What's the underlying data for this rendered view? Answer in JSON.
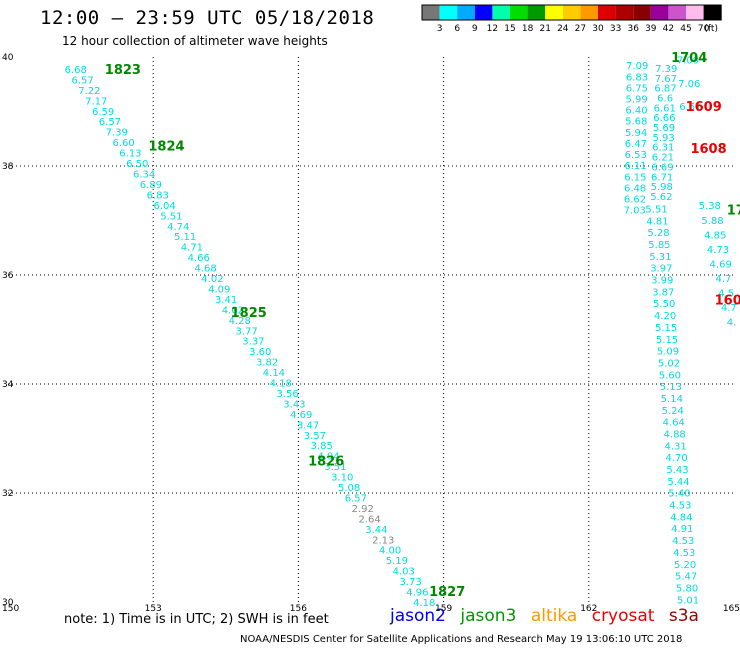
{
  "title": "12:00 – 23:59 UTC 05/18/2018",
  "subtitle": "12 hour collection of altimeter wave heights",
  "note": "note: 1) Time is in UTC; 2) SWH is in feet",
  "credit": "NOAA/NESDIS Center for Satellite Applications and Research    May 19 13:06:10 UTC 2018",
  "satellites": [
    "jason2",
    "jason3",
    "altika",
    "cryosat",
    "s3a"
  ],
  "colors": {
    "grid": "#000000",
    "track_cyan": "#00dddd",
    "grey": "#888888",
    "green": "#008800",
    "red": "#ee0000",
    "jason2": "#0000ee",
    "jason3": "#009900",
    "altika": "#ff9900",
    "cryosat": "#ee0000",
    "s3a": "#990000"
  },
  "chart_data": {
    "type": "scatter",
    "title": "12:00 – 23:59 UTC 05/18/2018",
    "subtitle": "12 hour collection of altimeter wave heights",
    "xlabel": "",
    "ylabel": "",
    "x_ticks": [
      "150",
      "153",
      "156",
      "159",
      "162",
      "165"
    ],
    "y_ticks": [
      "30",
      "32",
      "34",
      "36",
      "38",
      "40"
    ],
    "xlim": [
      150,
      165
    ],
    "ylim": [
      30,
      40
    ],
    "grid": true,
    "color_scale": {
      "unit": "(ft)",
      "labels": [
        "3",
        "6",
        "9",
        "12",
        "15",
        "18",
        "21",
        "24",
        "27",
        "30",
        "33",
        "36",
        "39",
        "42",
        "45",
        "70"
      ],
      "colors": [
        "#777777",
        "#00ffff",
        "#00aaff",
        "#0000ff",
        "#00ffaa",
        "#00dd00",
        "#009900",
        "#ffff00",
        "#ffcc00",
        "#ff9900",
        "#dd0000",
        "#aa0000",
        "#880000",
        "#990099",
        "#cc55cc",
        "#ffbbee",
        "#000000"
      ]
    },
    "time_labels": [
      {
        "text": "1823",
        "lon": 152.0,
        "lat": 39.78,
        "color": "green"
      },
      {
        "text": "1824",
        "lon": 152.9,
        "lat": 38.38,
        "color": "green"
      },
      {
        "text": "1825",
        "lon": 154.6,
        "lat": 35.32,
        "color": "green"
      },
      {
        "text": "1826",
        "lon": 156.2,
        "lat": 32.6,
        "color": "green"
      },
      {
        "text": "1827",
        "lon": 158.7,
        "lat": 30.2,
        "color": "green"
      },
      {
        "text": "1704",
        "lon": 163.7,
        "lat": 40.0,
        "color": "green"
      },
      {
        "text": "1609",
        "lon": 164.0,
        "lat": 39.1,
        "color": "red"
      },
      {
        "text": "1608",
        "lon": 164.1,
        "lat": 38.33,
        "color": "red"
      },
      {
        "text": "17",
        "lon": 164.85,
        "lat": 37.2,
        "color": "green"
      },
      {
        "text": "160",
        "lon": 164.6,
        "lat": 35.55,
        "color": "red"
      }
    ],
    "tracks": [
      {
        "lon_start": 151.4,
        "lat_start": 39.78,
        "lon_end": 158.6,
        "lat_end": 30.0,
        "values": [
          "6.68",
          "6.57",
          "7.22",
          "7.17",
          "6.59",
          "6.57",
          "7.39",
          "6.60",
          "6.13",
          "6.50",
          "6.34",
          "6.89",
          "6.83",
          "6.04",
          "5.51",
          "4.74",
          "5.11",
          "4.71",
          "4.66",
          "4.68",
          "4.02",
          "4.09",
          "3.41",
          "4.02",
          "4.28",
          "3.77",
          "3.37",
          "3.60",
          "3.82",
          "4.14",
          "4.18",
          "3.56",
          "3.43",
          "4.69",
          "3.47",
          "3.57",
          "3.85",
          "4.94",
          "3.51",
          "3.10",
          "5.08",
          "6.57",
          "2.92",
          "2.64",
          "3.44",
          "2.13",
          "4.00",
          "5.19",
          "4.03",
          "3.73",
          "4.96",
          "4.18"
        ],
        "colors": [
          "cyan",
          "cyan",
          "cyan",
          "cyan",
          "cyan",
          "cyan",
          "cyan",
          "cyan",
          "cyan",
          "cyan",
          "cyan",
          "cyan",
          "cyan",
          "cyan",
          "cyan",
          "cyan",
          "cyan",
          "cyan",
          "cyan",
          "cyan",
          "cyan",
          "cyan",
          "cyan",
          "cyan",
          "cyan",
          "cyan",
          "cyan",
          "cyan",
          "cyan",
          "cyan",
          "cyan",
          "cyan",
          "cyan",
          "cyan",
          "cyan",
          "cyan",
          "cyan",
          "cyan",
          "cyan",
          "cyan",
          "cyan",
          "cyan",
          "grey",
          "grey",
          "cyan",
          "grey",
          "cyan",
          "cyan",
          "cyan",
          "cyan",
          "cyan",
          "cyan"
        ]
      },
      {
        "lon_start": 163.0,
        "lat_start": 39.85,
        "lon_end": 162.95,
        "lat_end": 37.2,
        "values": [
          "7.09",
          "6.83",
          "6.75",
          "5.99",
          "6.40",
          "5.68",
          "5.94",
          "6.47",
          "6.53",
          "6.11",
          "6.15",
          "6.48",
          "6.62",
          "7.03"
        ],
        "colors": [
          "cyan",
          "cyan",
          "cyan",
          "cyan",
          "cyan",
          "cyan",
          "cyan",
          "cyan",
          "cyan",
          "cyan",
          "cyan",
          "cyan",
          "cyan",
          "cyan"
        ]
      },
      {
        "lon_start": 163.6,
        "lat_start": 39.8,
        "lon_end": 163.5,
        "lat_end": 37.45,
        "values": [
          "7.39",
          "7.67",
          "6.87",
          "6.6",
          "6.61",
          "6.66",
          "5.69",
          "5.93",
          "6.31",
          "6.21",
          "6.69",
          "6.71",
          "5.98",
          "5.62"
        ],
        "colors": [
          "cyan",
          "cyan",
          "cyan",
          "cyan",
          "cyan",
          "cyan",
          "cyan",
          "cyan",
          "cyan",
          "cyan",
          "cyan",
          "cyan",
          "cyan",
          "cyan"
        ]
      },
      {
        "lon_start": 163.4,
        "lat_start": 37.22,
        "lon_end": 164.05,
        "lat_end": 30.05,
        "values": [
          "5.51",
          "4.81",
          "5.28",
          "5.85",
          "5.31",
          "3.97",
          "3.99",
          "3.87",
          "5.50",
          "4.20",
          "5.15",
          "5.15",
          "5.09",
          "5.02",
          "5.60",
          "5.13",
          "5.14",
          "5.24",
          "4.64",
          "4.88",
          "4.31",
          "4.70",
          "5.43",
          "5.44",
          "5.40",
          "4.53",
          "4.84",
          "4.91",
          "4.53",
          "4.53",
          "5.20",
          "5.47",
          "5.80",
          "5.01"
        ],
        "colors": [
          "cyan",
          "cyan",
          "cyan",
          "cyan",
          "cyan",
          "cyan",
          "cyan",
          "cyan",
          "cyan",
          "cyan",
          "cyan",
          "cyan",
          "cyan",
          "cyan",
          "cyan",
          "cyan",
          "cyan",
          "cyan",
          "cyan",
          "cyan",
          "cyan",
          "cyan",
          "cyan",
          "cyan",
          "cyan",
          "cyan",
          "cyan",
          "cyan",
          "cyan",
          "cyan",
          "cyan",
          "cyan",
          "cyan",
          "cyan"
        ]
      },
      {
        "lon_start": 164.05,
        "lat_start": 39.95,
        "lon_end": 164.1,
        "lat_end": 39.1,
        "values": [
          "7.09",
          "7.06",
          "6.51"
        ],
        "colors": [
          "cyan",
          "cyan",
          "cyan"
        ]
      },
      {
        "lon_start": 164.5,
        "lat_start": 37.28,
        "lon_end": 164.95,
        "lat_end": 35.15,
        "values": [
          "5.38",
          "5.88",
          "4.85",
          "4.73",
          "4.69",
          "4.7",
          "4.5",
          "4.7",
          "4."
        ],
        "colors": [
          "cyan",
          "cyan",
          "cyan",
          "cyan",
          "cyan",
          "cyan",
          "cyan",
          "cyan",
          "cyan"
        ]
      }
    ]
  }
}
